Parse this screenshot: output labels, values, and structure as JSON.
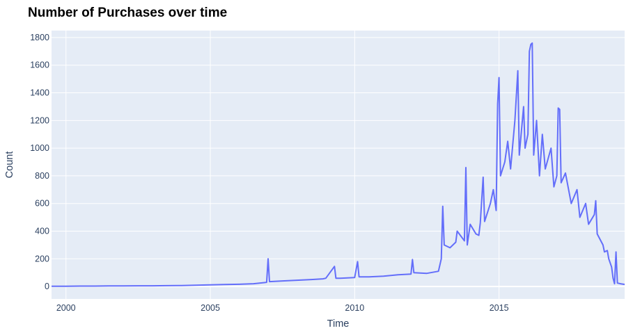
{
  "chart_data": {
    "type": "line",
    "title": "Number of Purchases over time",
    "xlabel": "Time",
    "ylabel": "Count",
    "xlim": [
      1999.5,
      2019.35
    ],
    "ylim": [
      -90,
      1850
    ],
    "x_ticks": [
      2000,
      2005,
      2010,
      2015
    ],
    "x_tick_labels": [
      "2000",
      "2005",
      "2010",
      "2015"
    ],
    "y_ticks": [
      0,
      200,
      400,
      600,
      800,
      1000,
      1200,
      1400,
      1600,
      1800
    ],
    "y_tick_labels": [
      "0",
      "200",
      "400",
      "600",
      "800",
      "1000",
      "1200",
      "1400",
      "1600",
      "1800"
    ],
    "grid": true,
    "colors": {
      "line": "#636efa",
      "plot_bg": "#e5ecf6",
      "grid": "#ffffff",
      "text": "#2a3f5f"
    },
    "series": [
      {
        "values": [
          [
            1999.5,
            2
          ],
          [
            2000.0,
            2
          ],
          [
            2000.5,
            3
          ],
          [
            2001.0,
            3
          ],
          [
            2001.5,
            4
          ],
          [
            2002.0,
            4
          ],
          [
            2002.5,
            5
          ],
          [
            2003.0,
            5
          ],
          [
            2003.5,
            6
          ],
          [
            2004.0,
            7
          ],
          [
            2004.5,
            9
          ],
          [
            2005.0,
            12
          ],
          [
            2005.5,
            14
          ],
          [
            2006.0,
            16
          ],
          [
            2006.5,
            20
          ],
          [
            2006.95,
            30
          ],
          [
            2007.0,
            200
          ],
          [
            2007.05,
            35
          ],
          [
            2007.5,
            40
          ],
          [
            2008.0,
            45
          ],
          [
            2008.5,
            50
          ],
          [
            2008.9,
            55
          ],
          [
            2009.0,
            60
          ],
          [
            2009.3,
            145
          ],
          [
            2009.35,
            60
          ],
          [
            2009.5,
            60
          ],
          [
            2010.0,
            65
          ],
          [
            2010.1,
            180
          ],
          [
            2010.15,
            70
          ],
          [
            2010.5,
            70
          ],
          [
            2011.0,
            75
          ],
          [
            2011.5,
            85
          ],
          [
            2011.95,
            90
          ],
          [
            2012.0,
            195
          ],
          [
            2012.05,
            100
          ],
          [
            2012.5,
            95
          ],
          [
            2012.9,
            110
          ],
          [
            2013.0,
            200
          ],
          [
            2013.05,
            580
          ],
          [
            2013.1,
            300
          ],
          [
            2013.3,
            280
          ],
          [
            2013.5,
            320
          ],
          [
            2013.55,
            400
          ],
          [
            2013.8,
            330
          ],
          [
            2013.85,
            860
          ],
          [
            2013.9,
            300
          ],
          [
            2014.0,
            450
          ],
          [
            2014.2,
            380
          ],
          [
            2014.3,
            370
          ],
          [
            2014.35,
            460
          ],
          [
            2014.45,
            790
          ],
          [
            2014.5,
            470
          ],
          [
            2014.7,
            600
          ],
          [
            2014.8,
            700
          ],
          [
            2014.9,
            550
          ],
          [
            2014.95,
            1320
          ],
          [
            2015.0,
            1510
          ],
          [
            2015.05,
            800
          ],
          [
            2015.2,
            900
          ],
          [
            2015.3,
            1050
          ],
          [
            2015.4,
            850
          ],
          [
            2015.55,
            1200
          ],
          [
            2015.65,
            1560
          ],
          [
            2015.7,
            950
          ],
          [
            2015.85,
            1300
          ],
          [
            2015.9,
            1000
          ],
          [
            2016.0,
            1100
          ],
          [
            2016.05,
            1700
          ],
          [
            2016.1,
            1750
          ],
          [
            2016.15,
            1760
          ],
          [
            2016.2,
            950
          ],
          [
            2016.3,
            1200
          ],
          [
            2016.4,
            800
          ],
          [
            2016.5,
            1100
          ],
          [
            2016.6,
            850
          ],
          [
            2016.8,
            1000
          ],
          [
            2016.9,
            720
          ],
          [
            2017.0,
            800
          ],
          [
            2017.05,
            1290
          ],
          [
            2017.1,
            1280
          ],
          [
            2017.15,
            750
          ],
          [
            2017.3,
            820
          ],
          [
            2017.5,
            600
          ],
          [
            2017.7,
            700
          ],
          [
            2017.8,
            500
          ],
          [
            2018.0,
            600
          ],
          [
            2018.1,
            450
          ],
          [
            2018.3,
            520
          ],
          [
            2018.35,
            620
          ],
          [
            2018.4,
            380
          ],
          [
            2018.6,
            300
          ],
          [
            2018.65,
            250
          ],
          [
            2018.75,
            260
          ],
          [
            2018.8,
            200
          ],
          [
            2018.9,
            140
          ],
          [
            2018.95,
            60
          ],
          [
            2019.0,
            20
          ],
          [
            2019.05,
            250
          ],
          [
            2019.1,
            25
          ],
          [
            2019.2,
            20
          ],
          [
            2019.35,
            15
          ]
        ]
      }
    ]
  }
}
